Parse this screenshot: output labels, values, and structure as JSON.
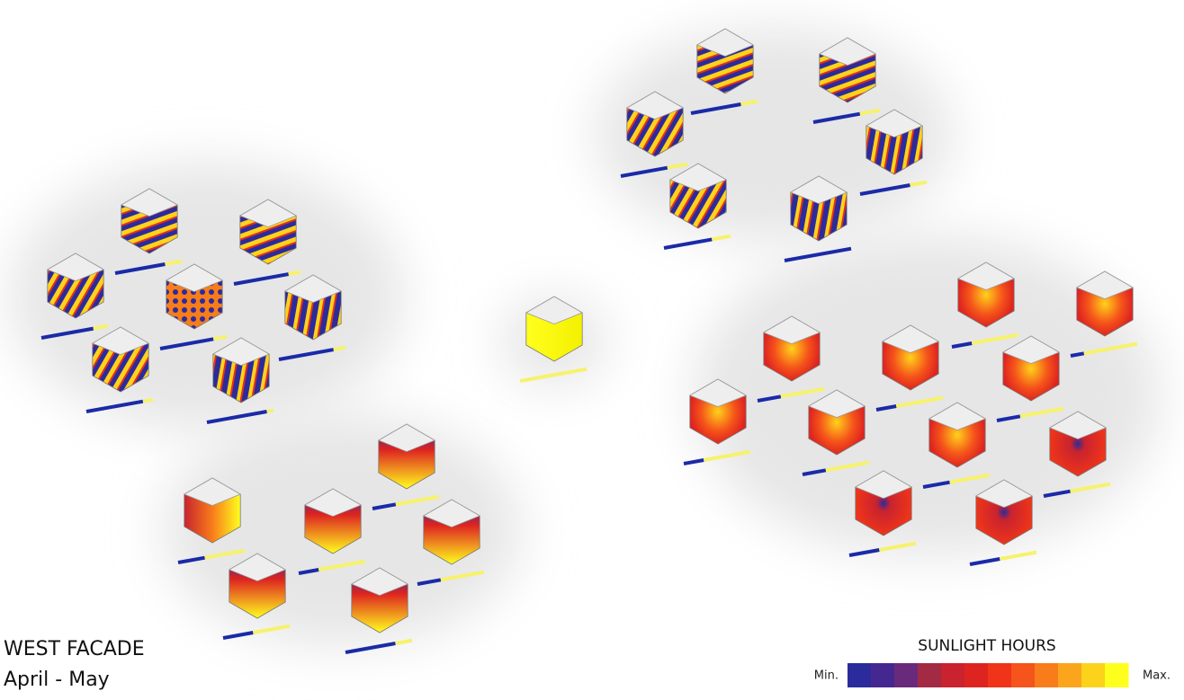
{
  "caption": {
    "title": "WEST FACADE",
    "period": "April - May"
  },
  "legend": {
    "title": "SUNLIGHT HOURS",
    "min_label": "Min.",
    "max_label": "Max.",
    "colors": [
      "#2b2b9c",
      "#45288f",
      "#6a2a7c",
      "#a22a45",
      "#c8232f",
      "#de2420",
      "#ef3419",
      "#f5541a",
      "#f87c1a",
      "#faa51b",
      "#fcd21b",
      "#ffff1e"
    ]
  }
}
